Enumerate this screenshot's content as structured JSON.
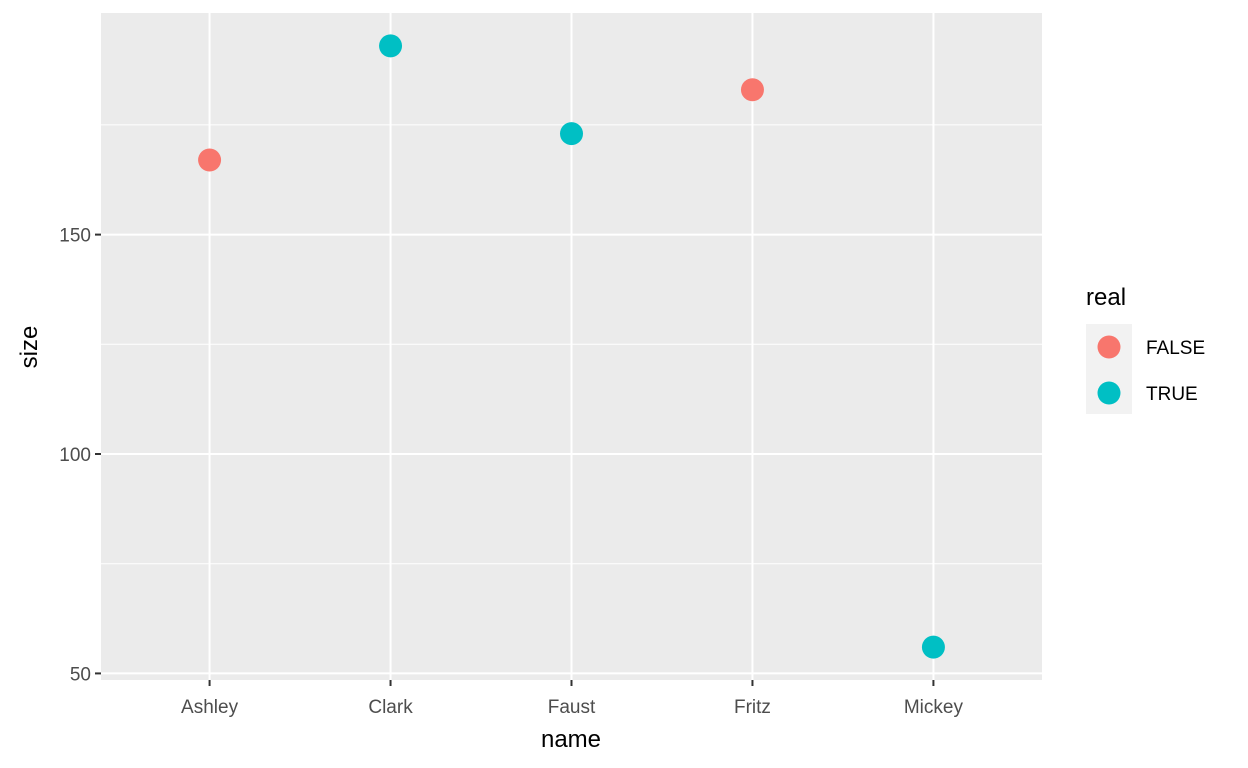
{
  "chart_data": {
    "type": "scatter",
    "xlabel": "name",
    "ylabel": "size",
    "categories": [
      "Ashley",
      "Clark",
      "Faust",
      "Fritz",
      "Mickey"
    ],
    "y_ticks": [
      50,
      100,
      150
    ],
    "ylim": [
      48.5,
      200.5
    ],
    "grid": true,
    "legend": {
      "title": "real",
      "placement": "right",
      "entries": [
        {
          "label": "FALSE",
          "color": "#F8766D"
        },
        {
          "label": "TRUE",
          "color": "#00BFC4"
        }
      ]
    },
    "points": [
      {
        "name": "Ashley",
        "size": 167,
        "real": "FALSE"
      },
      {
        "name": "Clark",
        "size": 193,
        "real": "TRUE"
      },
      {
        "name": "Faust",
        "size": 173,
        "real": "TRUE"
      },
      {
        "name": "Fritz",
        "size": 183,
        "real": "FALSE"
      },
      {
        "name": "Mickey",
        "size": 56,
        "real": "TRUE"
      }
    ]
  },
  "colors": {
    "panel_background": "#EBEBEB",
    "grid_line": "#FFFFFF",
    "tick_mark": "#333333",
    "false": "#F8766D",
    "true": "#00BFC4"
  }
}
